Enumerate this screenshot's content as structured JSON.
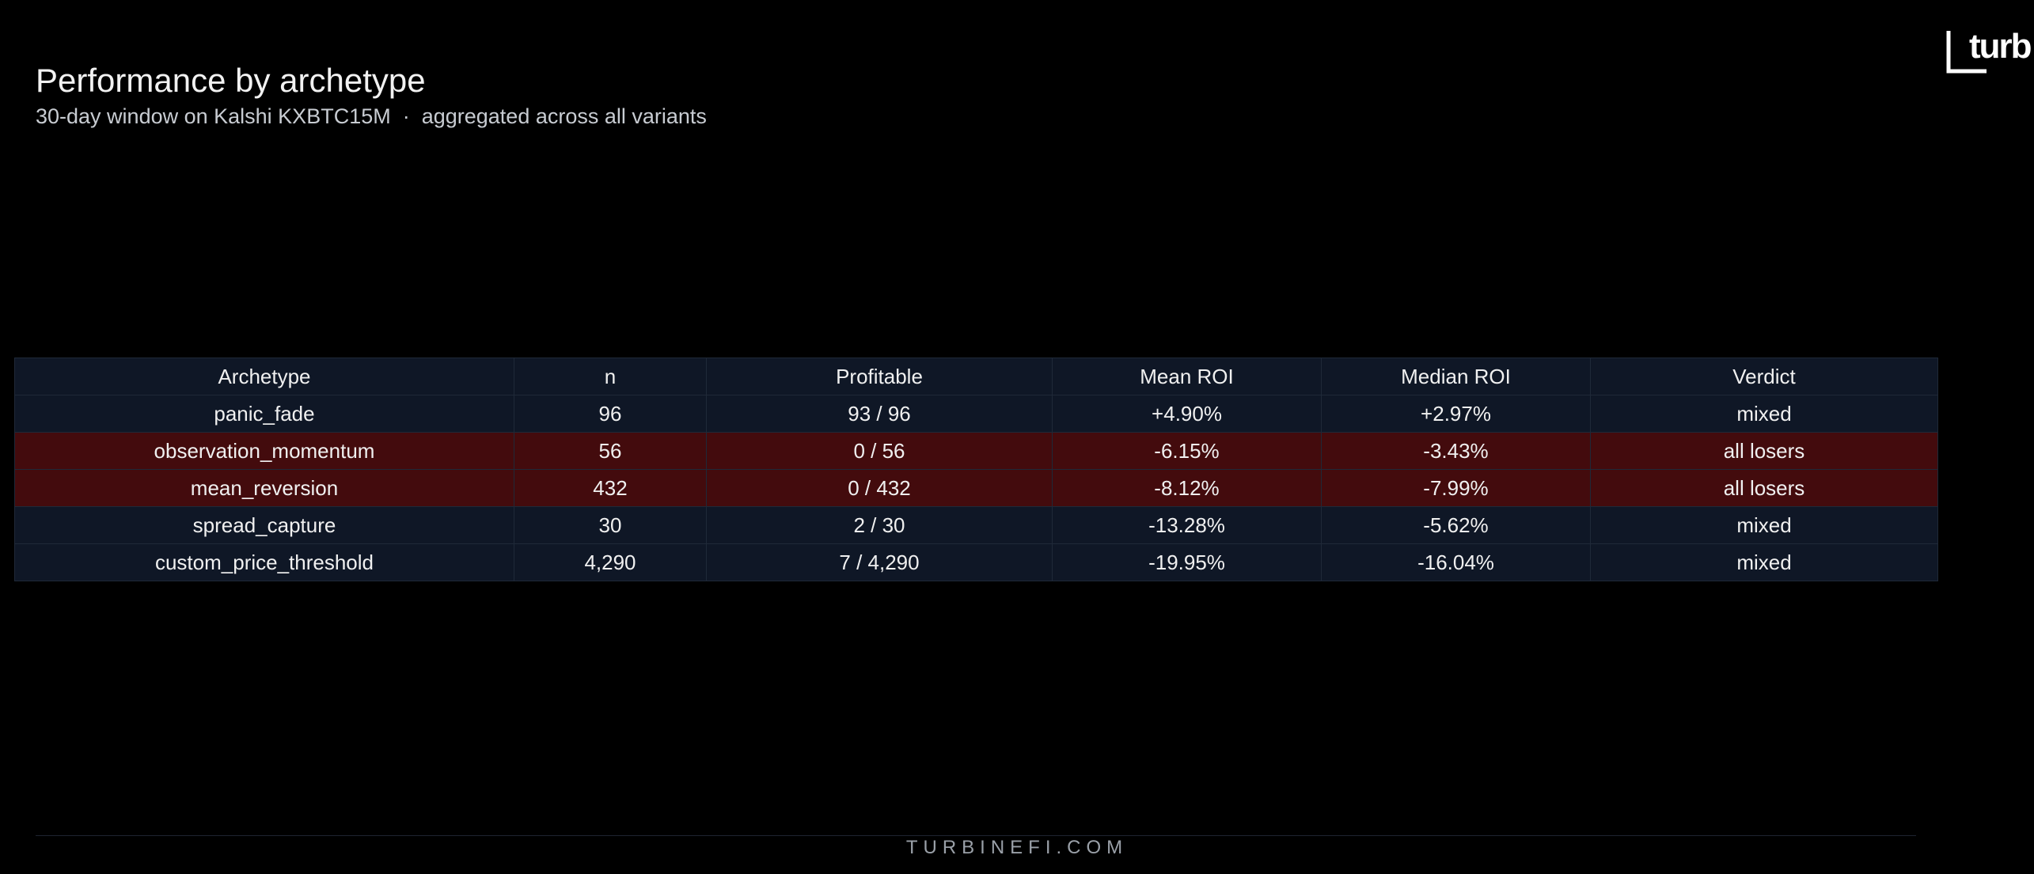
{
  "header": {
    "title": "Performance by archetype",
    "subtitle": "30-day window on Kalshi KXBTC15M  ·  aggregated across all variants"
  },
  "logo": {
    "text": "turb"
  },
  "table": {
    "columns": [
      "Archetype",
      "n",
      "Profitable",
      "Mean ROI",
      "Median ROI",
      "Verdict"
    ],
    "rows": [
      [
        "panic_fade",
        "96",
        "93 / 96",
        "+4.90%",
        "+2.97%",
        "mixed"
      ],
      [
        "observation_momentum",
        "56",
        "0 / 56",
        "-6.15%",
        "-3.43%",
        "all losers"
      ],
      [
        "mean_reversion",
        "432",
        "0 / 432",
        "-8.12%",
        "-7.99%",
        "all losers"
      ],
      [
        "spread_capture",
        "30",
        "2 / 30",
        "-13.28%",
        "-5.62%",
        "mixed"
      ],
      [
        "custom_price_threshold",
        "4,290",
        "7 / 4,290",
        "-19.95%",
        "-16.04%",
        "mixed"
      ]
    ],
    "row_color": "#0f1726",
    "highlight_color": "#430b0d",
    "highlighted_rows": [
      1,
      2
    ]
  },
  "footer": {
    "text": "TURBINEFI.COM"
  }
}
